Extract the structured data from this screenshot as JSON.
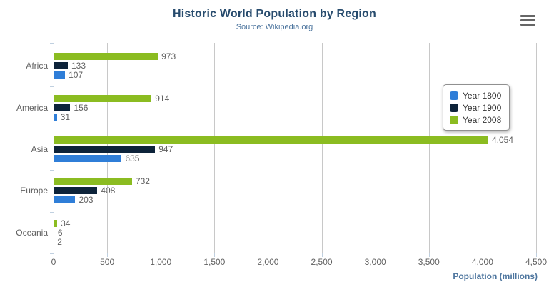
{
  "title": "Historic World Population by Region",
  "subtitle": "Source: Wikipedia.org",
  "export_menu": {
    "icon": "hamburger-icon"
  },
  "theme": {
    "title_color": "#274b6d",
    "subtitle_color": "#4d759e",
    "axis_title_color": "#4d759e",
    "axis_label_color": "#606060",
    "data_label_color": "#606060",
    "grid_color": "#c8c8c8",
    "axis_line_color": "#c0d0e0",
    "legend_border_color": "#909090",
    "legend_text_color": "#333333",
    "menu_icon_color": "#666666"
  },
  "chart_data": {
    "type": "bar",
    "orientation": "horizontal",
    "title": "Historic World Population by Region",
    "subtitle": "Source: Wikipedia.org",
    "categories": [
      "Africa",
      "America",
      "Asia",
      "Europe",
      "Oceania"
    ],
    "series": [
      {
        "name": "Year 1800",
        "color": "#2f7ed8",
        "values": [
          107,
          31,
          635,
          203,
          2
        ],
        "labels": [
          "107",
          "31",
          "635",
          "203",
          "2"
        ]
      },
      {
        "name": "Year 1900",
        "color": "#0d233a",
        "values": [
          133,
          156,
          947,
          408,
          6
        ],
        "labels": [
          "133",
          "156",
          "947",
          "408",
          "6"
        ]
      },
      {
        "name": "Year 2008",
        "color": "#8bbc21",
        "values": [
          973,
          914,
          4054,
          732,
          34
        ],
        "labels": [
          "973",
          "914",
          "4,054",
          "732",
          "34"
        ]
      }
    ],
    "bar_order_top_to_bottom": [
      "Year 2008",
      "Year 1900",
      "Year 1800"
    ],
    "xlabel": "Population (millions)",
    "xlim": [
      0,
      4500
    ],
    "xticks": {
      "values": [
        0,
        500,
        1000,
        1500,
        2000,
        2500,
        3000,
        3500,
        4000,
        4500
      ],
      "labels": [
        "0",
        "500",
        "1,000",
        "1,500",
        "2,000",
        "2,500",
        "3,000",
        "3,500",
        "4,000",
        "4,500"
      ]
    },
    "legend": {
      "position": "right",
      "items": [
        "Year 1800",
        "Year 1900",
        "Year 2008"
      ]
    },
    "grid": true,
    "data_labels": true
  }
}
